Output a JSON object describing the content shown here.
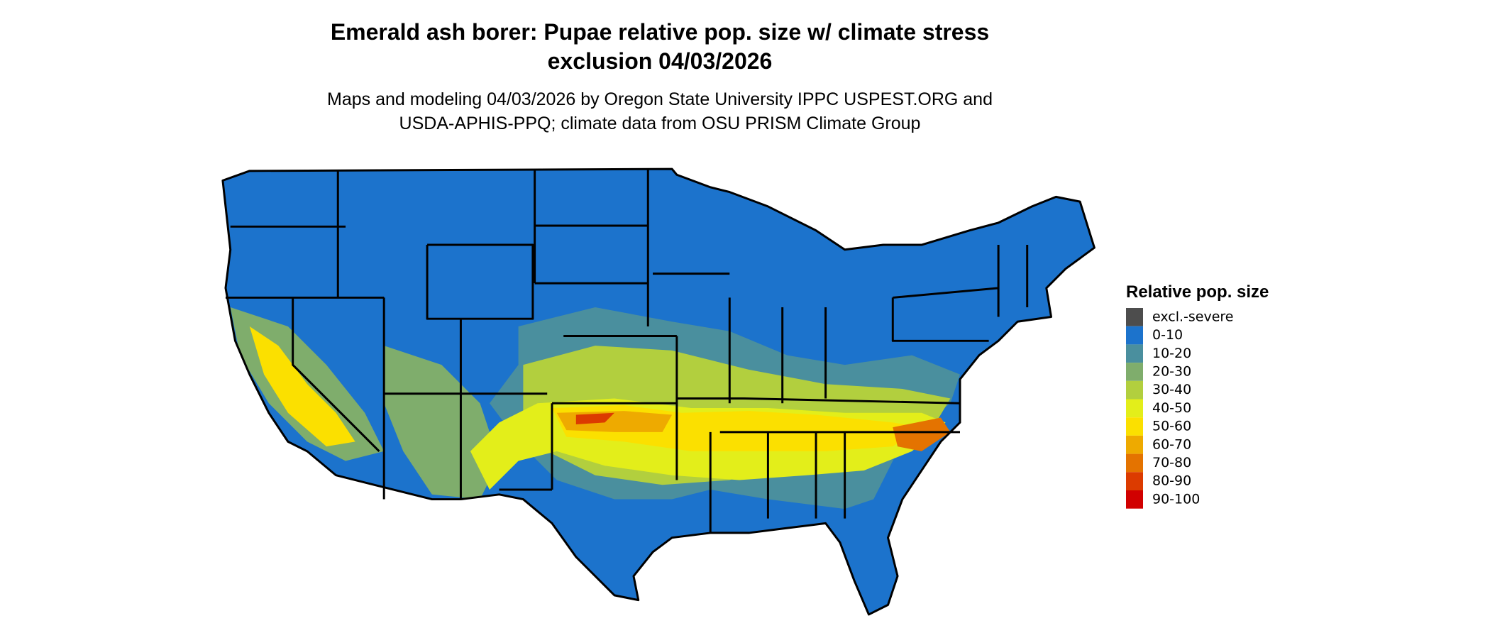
{
  "header": {
    "title_lines": [
      "Emerald ash borer: Pupae relative pop. size w/ climate stress",
      "exclusion 04/03/2026"
    ],
    "subtitle_lines": [
      "Maps and modeling 04/03/2026 by Oregon State University IPPC USPEST.ORG and",
      "USDA-APHIS-PPQ; climate data from OSU PRISM Climate Group"
    ]
  },
  "legend": {
    "title": "Relative pop. size",
    "items": [
      {
        "label": "excl.-severe",
        "color": "#4d4d4d"
      },
      {
        "label": "0-10",
        "color": "#1c73cc"
      },
      {
        "label": "10-20",
        "color": "#4a8f9e"
      },
      {
        "label": "20-30",
        "color": "#7fad6c"
      },
      {
        "label": "30-40",
        "color": "#b2cf3e"
      },
      {
        "label": "40-50",
        "color": "#e3ee1a"
      },
      {
        "label": "50-60",
        "color": "#fbe000"
      },
      {
        "label": "60-70",
        "color": "#eeaa00"
      },
      {
        "label": "70-80",
        "color": "#e47300"
      },
      {
        "label": "80-90",
        "color": "#dc3b00"
      },
      {
        "label": "90-100",
        "color": "#d10000"
      }
    ]
  }
}
